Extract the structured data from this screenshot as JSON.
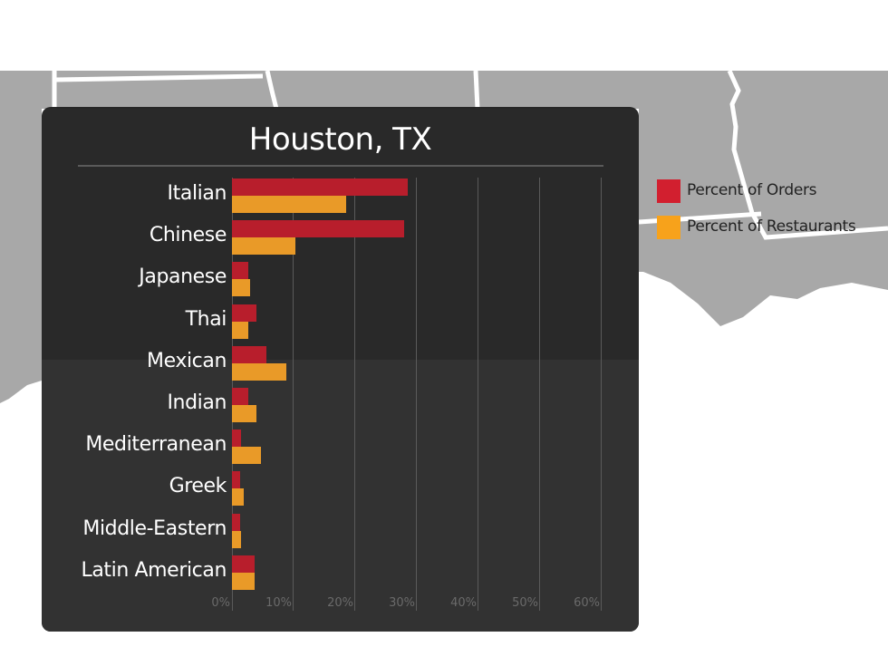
{
  "chart_data": {
    "type": "bar",
    "orientation": "horizontal",
    "title": "Houston, TX",
    "xlabel": "",
    "ylabel": "",
    "xlim": [
      0,
      60
    ],
    "grid": true,
    "legend_position": "right",
    "categories": [
      "Italian",
      "Chinese",
      "Japanese",
      "Thai",
      "Mexican",
      "Indian",
      "Mediterranean",
      "Greek",
      "Middle-Eastern",
      "Latin American"
    ],
    "x_ticks": [
      "0%",
      "10%",
      "20%",
      "30%",
      "40%",
      "50%",
      "60%"
    ],
    "series": [
      {
        "name": "Percent of Orders",
        "color": "#b81e2c",
        "values": [
          28.5,
          28.0,
          2.6,
          4.0,
          5.6,
          2.6,
          1.5,
          1.3,
          1.3,
          3.7
        ]
      },
      {
        "name": "Percent of Restaurants",
        "color": "#e99a28",
        "values": [
          18.5,
          10.3,
          2.9,
          2.6,
          8.8,
          4.0,
          4.7,
          1.9,
          1.5,
          3.7
        ]
      }
    ]
  },
  "legend": {
    "items": [
      {
        "label": "Percent of Orders",
        "color": "#d21f2f"
      },
      {
        "label": "Percent of Restaurants",
        "color": "#f7a21b"
      }
    ]
  }
}
